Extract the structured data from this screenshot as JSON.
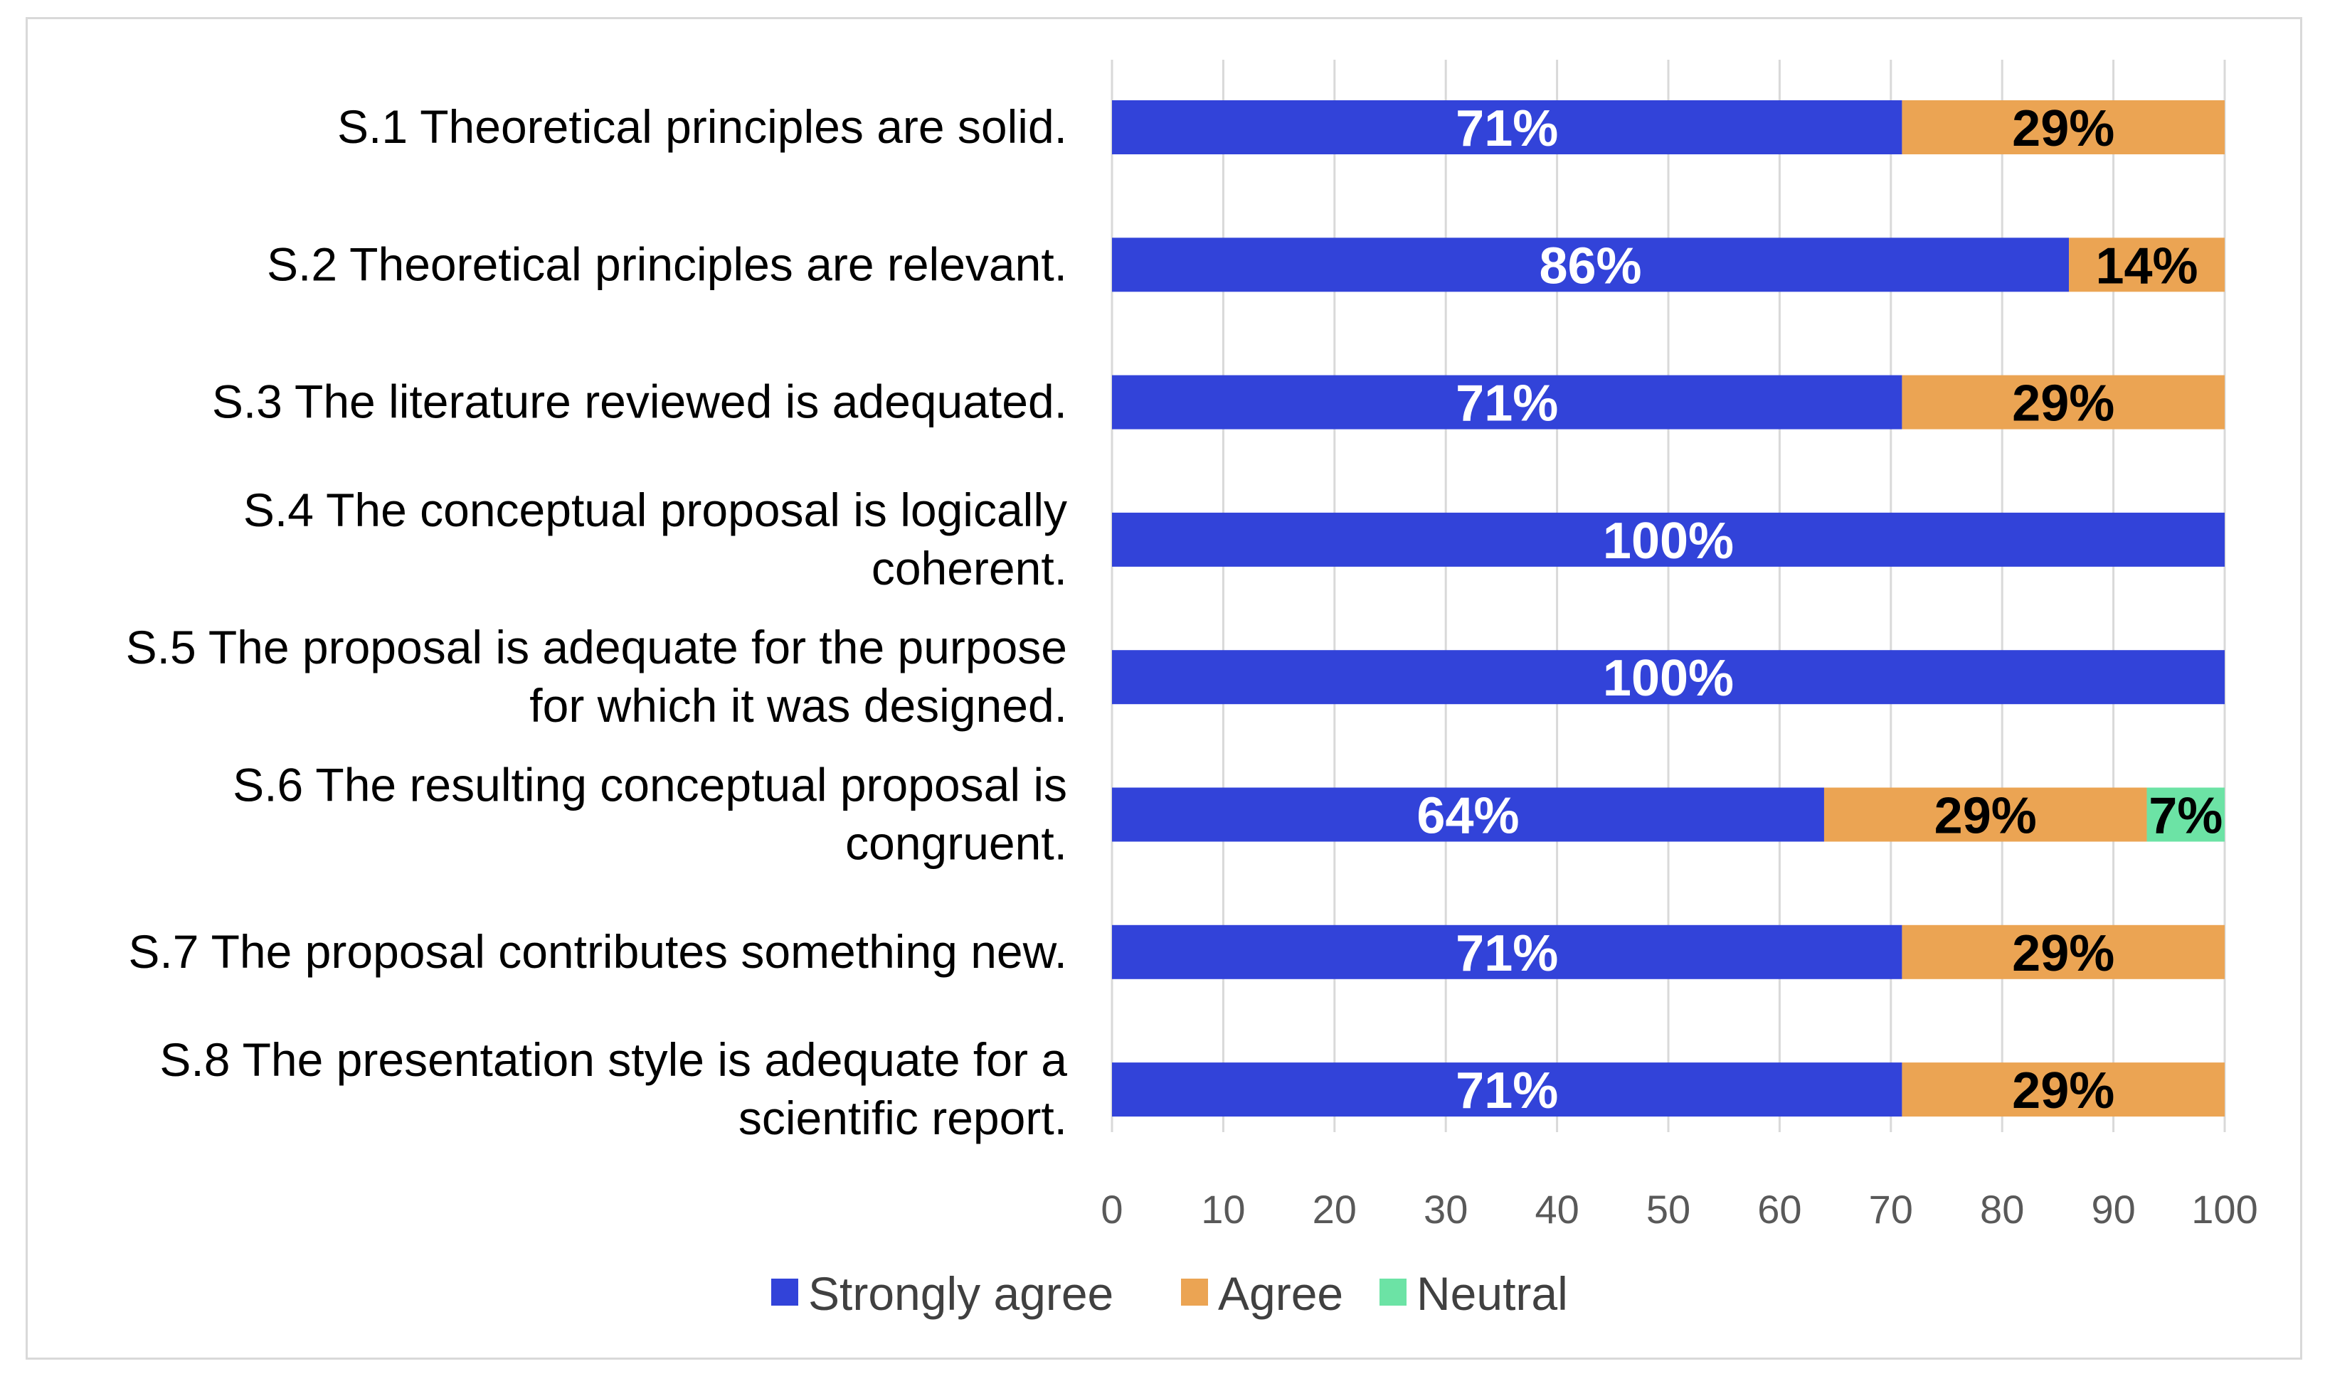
{
  "chart_data": {
    "type": "bar",
    "orientation": "horizontal",
    "stacked": true,
    "categories": [
      [
        "S.1 Theoretical principles are solid."
      ],
      [
        "S.2 Theoretical principles are relevant."
      ],
      [
        "S.3 The literature reviewed is adequated."
      ],
      [
        "S.4 The conceptual proposal is logically",
        "coherent."
      ],
      [
        "S.5 The proposal is adequate for the purpose",
        "for which it was designed."
      ],
      [
        "S.6 The resulting conceptual proposal is",
        "congruent."
      ],
      [
        "S.7 The proposal contributes something new."
      ],
      [
        "S.8 The presentation style is adequate for a",
        "scientific report."
      ]
    ],
    "series": [
      {
        "name": "Strongly agree",
        "color": "#3243d9",
        "label_color": "#ffffff",
        "values": [
          71,
          86,
          71,
          100,
          100,
          64,
          71,
          71
        ],
        "labels": [
          "71%",
          "86%",
          "71%",
          "100%",
          "100%",
          "64%",
          "71%",
          "71%"
        ]
      },
      {
        "name": "Agree",
        "color": "#eba453",
        "label_color": "#000000",
        "values": [
          29,
          14,
          29,
          0,
          0,
          29,
          29,
          29
        ],
        "labels": [
          "29%",
          "14%",
          "29%",
          "",
          "",
          "29%",
          "29%",
          "29%"
        ]
      },
      {
        "name": "Neutral",
        "color": "#6ce3a5",
        "label_color": "#000000",
        "values": [
          0,
          0,
          0,
          0,
          0,
          7,
          0,
          0
        ],
        "labels": [
          "",
          "",
          "",
          "",
          "",
          "7%",
          "",
          ""
        ]
      }
    ],
    "xlim": [
      0,
      100
    ],
    "xticks": [
      "0",
      "10",
      "20",
      "30",
      "40",
      "50",
      "60",
      "70",
      "80",
      "90",
      "100"
    ],
    "grid": true,
    "legend": "bottom"
  }
}
